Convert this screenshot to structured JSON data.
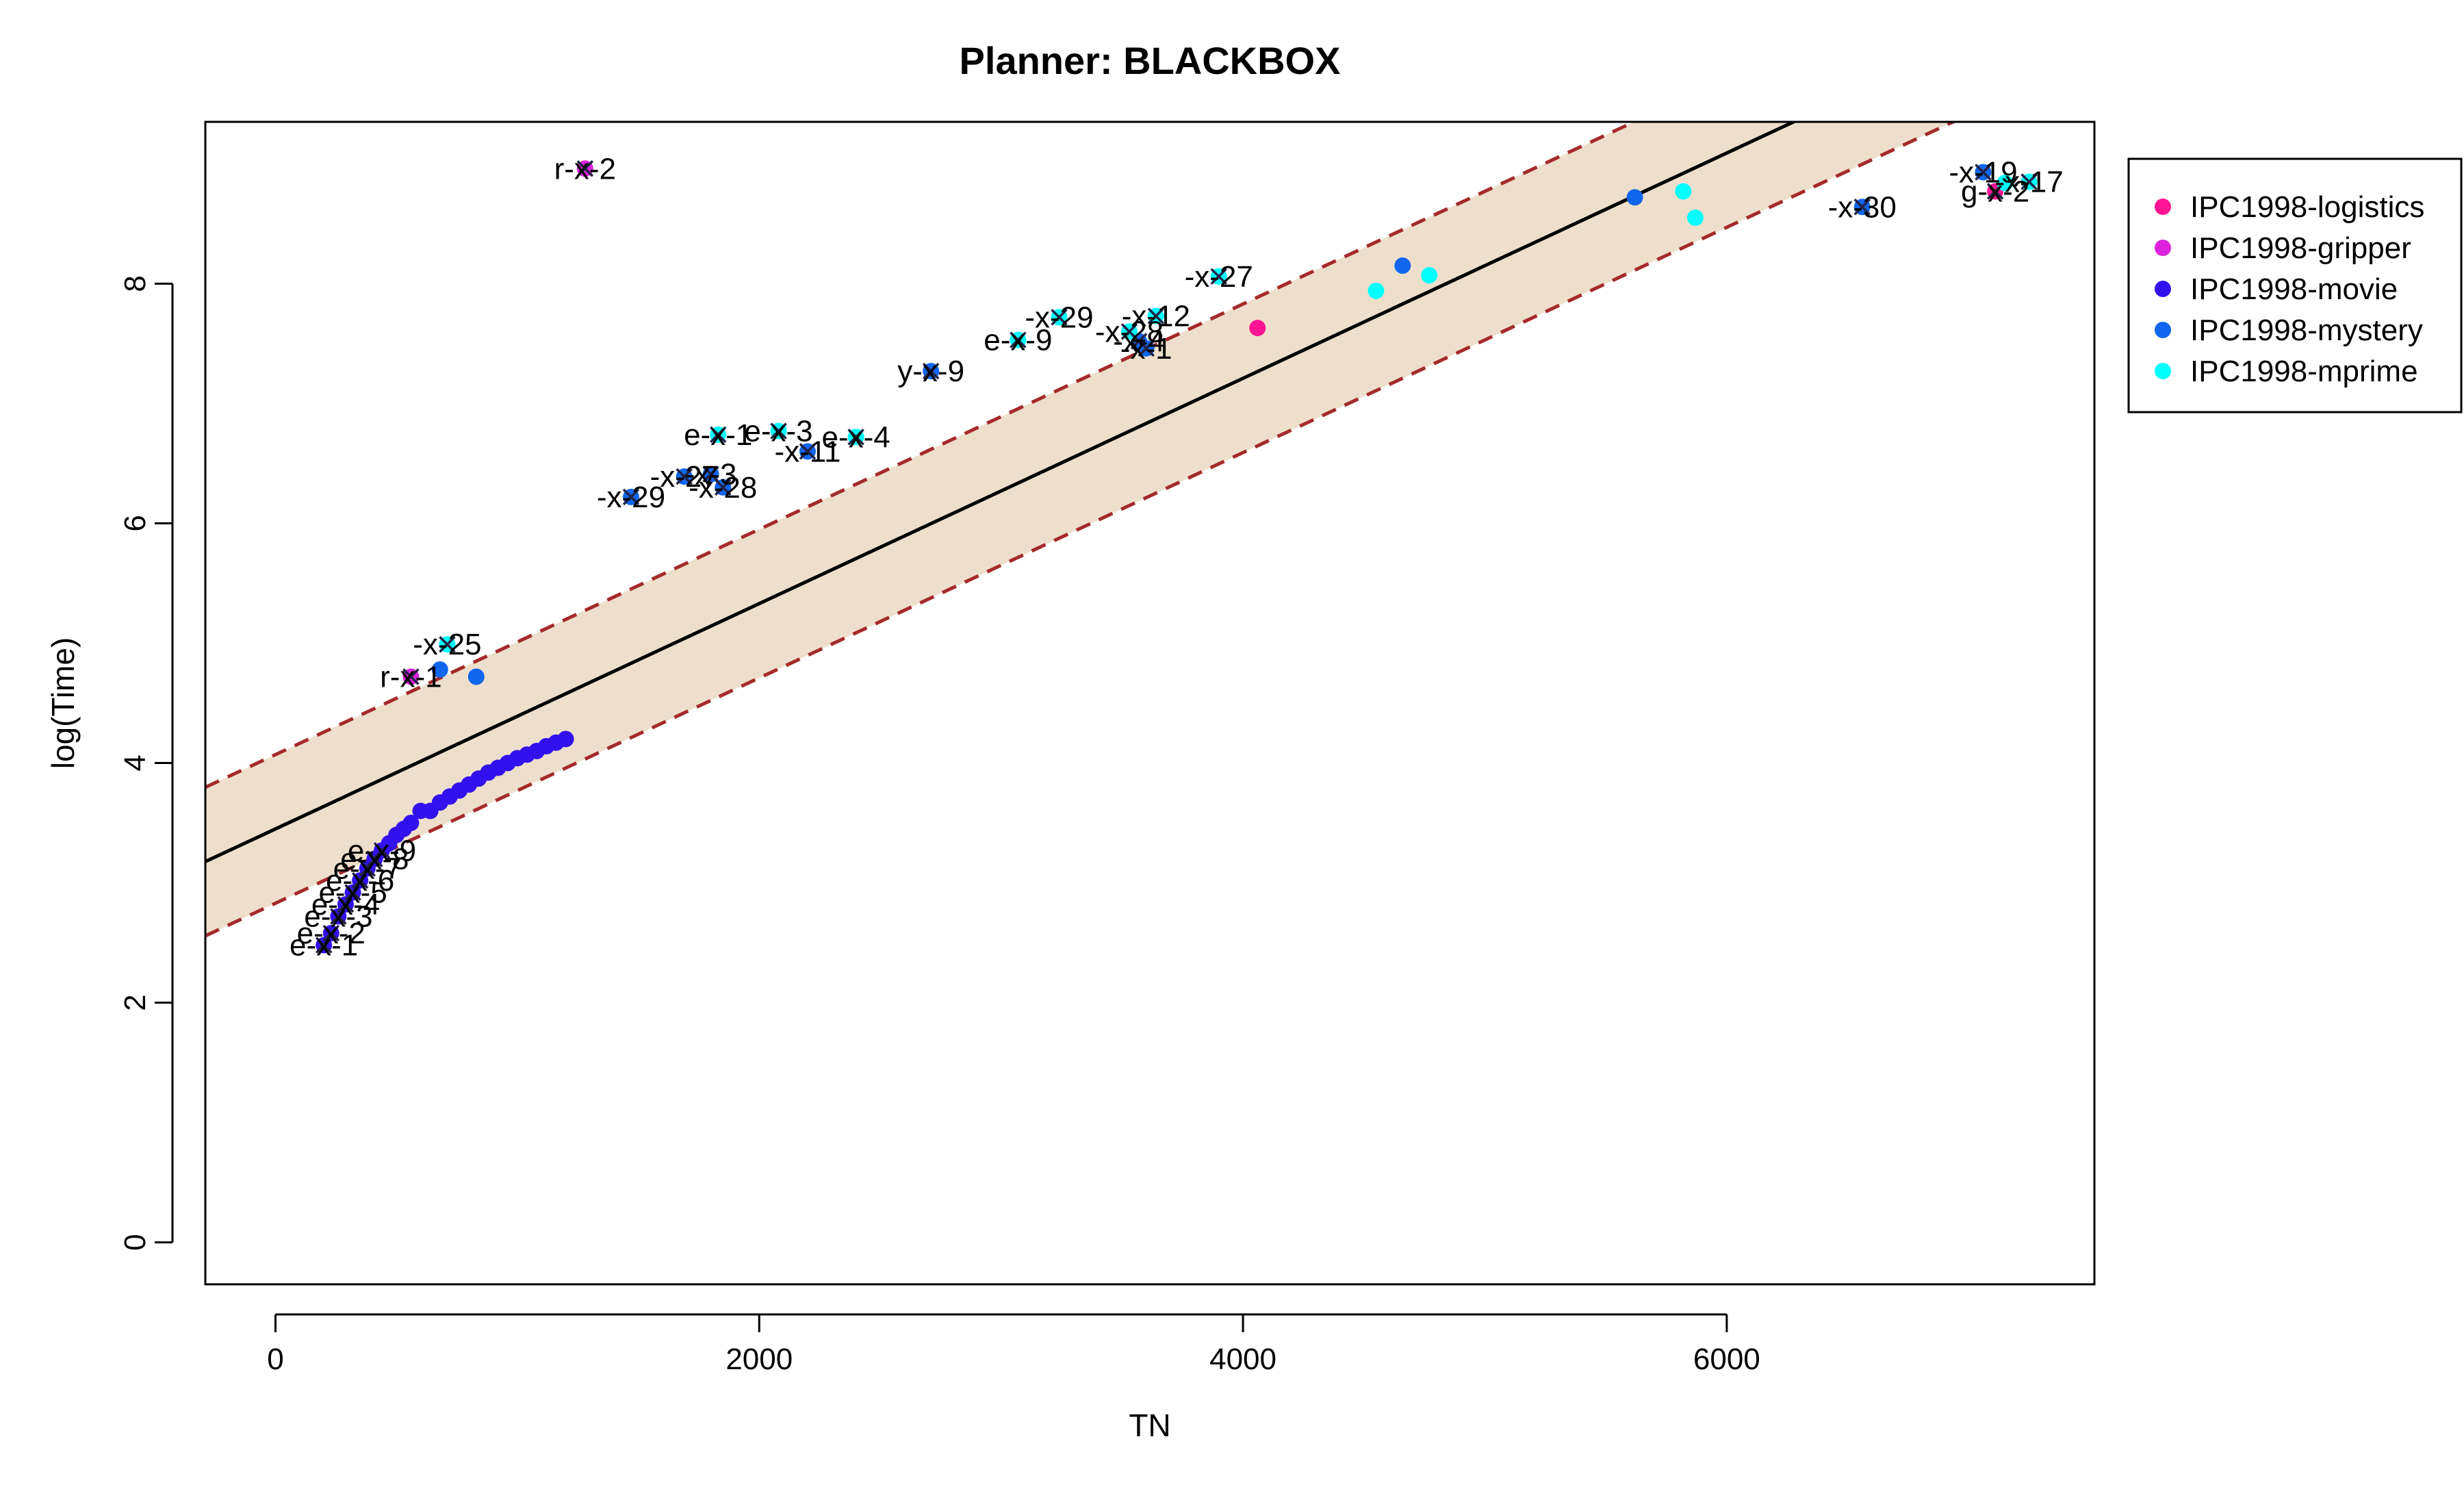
{
  "chart_data": {
    "type": "scatter",
    "title": "Planner: BLACKBOX",
    "xlabel": "TN",
    "ylabel": "log(Time)",
    "xlim": [
      -290,
      7520
    ],
    "ylim": [
      -0.35,
      9.35
    ],
    "xticks": [
      0,
      2000,
      4000,
      6000
    ],
    "yticks": [
      0,
      2,
      4,
      6,
      8
    ],
    "grid": false,
    "legend_position": "right",
    "regression": {
      "label": "fit",
      "intercept": 3.45,
      "slope": 0.00094,
      "band_halfwidth": 0.62,
      "line_color": "#000000",
      "dashed_color": "#a52a2a",
      "band_color": "#eedfcc"
    },
    "series": [
      {
        "name": "IPC1998-logistics",
        "color": "#ff1493",
        "points": [
          {
            "x": 4060,
            "y": 7.63
          },
          {
            "x": 7110,
            "y": 8.77,
            "label": "g-x-2",
            "cross": true
          }
        ]
      },
      {
        "name": "IPC1998-gripper",
        "color": "#dd22dd",
        "points": [
          {
            "x": 560,
            "y": 4.72,
            "label": "r-x-1",
            "cross": true
          },
          {
            "x": 1280,
            "y": 8.96,
            "label": "r-x-2",
            "cross": true
          }
        ]
      },
      {
        "name": "IPC1998-movie",
        "color": "#3311ee",
        "points": [
          {
            "x": 200,
            "y": 2.48,
            "label": "e-x-1",
            "cross": true
          },
          {
            "x": 230,
            "y": 2.58,
            "label": "e-x-2",
            "cross": true
          },
          {
            "x": 260,
            "y": 2.72,
            "label": "e-x-3",
            "cross": true
          },
          {
            "x": 290,
            "y": 2.82,
            "label": "e-x-4",
            "cross": true
          },
          {
            "x": 320,
            "y": 2.92,
            "label": "e-x-5",
            "cross": true
          },
          {
            "x": 350,
            "y": 3.02,
            "label": "e-x-6",
            "cross": true
          },
          {
            "x": 380,
            "y": 3.12,
            "label": "e-x-7",
            "cross": true
          },
          {
            "x": 410,
            "y": 3.2,
            "label": "e-x-8",
            "cross": true
          },
          {
            "x": 440,
            "y": 3.27,
            "label": "e-x-9",
            "cross": true
          },
          {
            "x": 470,
            "y": 3.33
          },
          {
            "x": 500,
            "y": 3.4
          },
          {
            "x": 530,
            "y": 3.45
          },
          {
            "x": 560,
            "y": 3.5
          },
          {
            "x": 600,
            "y": 3.6
          },
          {
            "x": 640,
            "y": 3.6
          },
          {
            "x": 680,
            "y": 3.67
          },
          {
            "x": 720,
            "y": 3.72
          },
          {
            "x": 760,
            "y": 3.77
          },
          {
            "x": 800,
            "y": 3.82
          },
          {
            "x": 840,
            "y": 3.87
          },
          {
            "x": 880,
            "y": 3.92
          },
          {
            "x": 920,
            "y": 3.96
          },
          {
            "x": 960,
            "y": 4.0
          },
          {
            "x": 1000,
            "y": 4.04
          },
          {
            "x": 1040,
            "y": 4.07
          },
          {
            "x": 1080,
            "y": 4.1
          },
          {
            "x": 1120,
            "y": 4.14
          },
          {
            "x": 1160,
            "y": 4.17
          },
          {
            "x": 1200,
            "y": 4.2
          }
        ]
      },
      {
        "name": "IPC1998-mystery",
        "color": "#1166ee",
        "points": [
          {
            "x": 680,
            "y": 4.78
          },
          {
            "x": 830,
            "y": 4.72
          },
          {
            "x": 1470,
            "y": 6.22,
            "label": "-x-29",
            "cross": true
          },
          {
            "x": 1690,
            "y": 6.39,
            "label": "-x-27",
            "cross": true
          },
          {
            "x": 1800,
            "y": 6.41,
            "label": "-x-3",
            "cross": true
          },
          {
            "x": 1850,
            "y": 6.3,
            "label": "-x-28",
            "cross": true
          },
          {
            "x": 2200,
            "y": 6.6,
            "label": "-x-11",
            "cross": true
          },
          {
            "x": 2710,
            "y": 7.27,
            "label": "y-x-9",
            "cross": true
          },
          {
            "x": 3570,
            "y": 7.52,
            "label": "-x-4",
            "cross": true
          },
          {
            "x": 3600,
            "y": 7.46,
            "label": "-x-1",
            "cross": true
          },
          {
            "x": 4660,
            "y": 8.15
          },
          {
            "x": 5620,
            "y": 8.72
          },
          {
            "x": 6560,
            "y": 8.64,
            "label": "-x-30",
            "cross": true
          },
          {
            "x": 7060,
            "y": 8.93,
            "label": "-x-19",
            "cross": true
          }
        ]
      },
      {
        "name": "IPC1998-mprime",
        "color": "#00ffff",
        "points": [
          {
            "x": 710,
            "y": 4.99,
            "label": "-x-25",
            "cross": true
          },
          {
            "x": 1830,
            "y": 6.74,
            "label": "e-x-1",
            "cross": true
          },
          {
            "x": 2080,
            "y": 6.77,
            "label": "e-x-3",
            "cross": true
          },
          {
            "x": 2400,
            "y": 6.72,
            "label": "e-x-4",
            "cross": true
          },
          {
            "x": 3070,
            "y": 7.53,
            "label": "e-x-9",
            "cross": true
          },
          {
            "x": 3240,
            "y": 7.72,
            "label": "-x-29",
            "cross": true
          },
          {
            "x": 3530,
            "y": 7.6,
            "label": "-x-28",
            "cross": true
          },
          {
            "x": 3640,
            "y": 7.73,
            "label": "-x-12",
            "cross": true
          },
          {
            "x": 3900,
            "y": 8.06,
            "label": "-x-27",
            "cross": true
          },
          {
            "x": 4550,
            "y": 7.94
          },
          {
            "x": 4770,
            "y": 8.07
          },
          {
            "x": 5820,
            "y": 8.77
          },
          {
            "x": 5870,
            "y": 8.55
          },
          {
            "x": 7150,
            "y": 8.84
          },
          {
            "x": 7250,
            "y": 8.85,
            "label": "-x-17",
            "cross": true
          }
        ]
      }
    ]
  }
}
